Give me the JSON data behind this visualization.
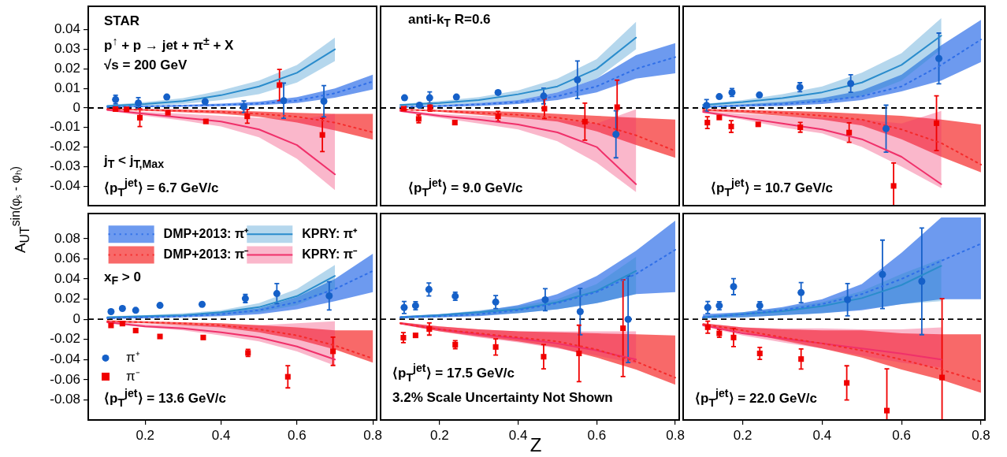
{
  "chart_data": [
    {
      "type": "scatter",
      "ylabel": "A$_{UT}$$^{sin(φₛ - φₕ)}$",
      "xlim": [
        0.05,
        0.81
      ],
      "xticks": [
        0.2,
        0.4,
        0.6,
        0.8
      ],
      "ylim": [
        -0.05,
        0.052
      ],
      "yticks": [
        -0.04,
        -0.03,
        -0.02,
        -0.01,
        0,
        0.01,
        0.02,
        0.03,
        0.04
      ],
      "tick_labels": "y",
      "annotations": [
        "STAR",
        "p$^{↑}$ + p → jet + π$^{±}$ + X",
        "√s = 200 GeV",
        "j$_{T}$ < j$_{T,Max}$",
        "⟨p$_{T}$$^{jet}$⟩ = 6.7 GeV/c"
      ],
      "ref_lines": [
        {
          "axis": "y",
          "value": 0,
          "color": "#000000",
          "line_style": "dashed"
        }
      ],
      "series": [
        {
          "type": "scatter",
          "marker": "circle",
          "color": "#1560c8",
          "x": [
            0.122,
            0.182,
            0.257,
            0.358,
            0.46,
            0.565,
            0.671
          ],
          "values": [
            0.0043,
            0.0025,
            0.0056,
            0.0032,
            0.0006,
            0.0037,
            0.0034
          ],
          "errors": [
            0.0022,
            0.0028,
            null,
            null,
            0.003,
            0.009,
            0.008
          ]
        },
        {
          "type": "scatter",
          "marker": "square",
          "color": "#f00000",
          "x": [
            0.122,
            0.151,
            0.186,
            0.26,
            0.36,
            0.469,
            0.554,
            0.667
          ],
          "values": [
            -0.0006,
            -0.0007,
            -0.005,
            -0.0025,
            -0.0069,
            -0.0043,
            0.0117,
            -0.0138
          ],
          "errors": [
            null,
            null,
            0.0045,
            null,
            null,
            0.0035,
            0.008,
            0.0085
          ]
        },
        {
          "type": "line",
          "line_style": "dotted",
          "color": "#2f6fe8",
          "x": [
            0.1,
            0.2,
            0.3,
            0.4,
            0.5,
            0.6,
            0.7,
            0.8
          ],
          "values": [
            0.0005,
            0.0008,
            0.0011,
            0.0015,
            0.0022,
            0.0038,
            0.0075,
            0.0135
          ],
          "lower": [
            0.0002,
            0.0004,
            0.0006,
            0.0009,
            0.0014,
            0.0025,
            0.0052,
            0.0095
          ],
          "upper": [
            0.0008,
            0.0012,
            0.0016,
            0.0022,
            0.0032,
            0.0055,
            0.01,
            0.017
          ]
        },
        {
          "type": "line",
          "line_style": "dotted",
          "color": "#f52a2a",
          "x": [
            0.1,
            0.2,
            0.3,
            0.4,
            0.5,
            0.6,
            0.7,
            0.8
          ],
          "values": [
            -0.0005,
            -0.001,
            -0.0015,
            -0.002,
            -0.003,
            -0.0045,
            -0.0075,
            -0.0125
          ],
          "lower": [
            -0.0008,
            -0.0015,
            -0.0022,
            -0.003,
            -0.0045,
            -0.0075,
            -0.0115,
            -0.0162
          ],
          "upper": [
            -0.0002,
            -0.0005,
            -0.0008,
            -0.0012,
            -0.0018,
            -0.0025,
            -0.003,
            -0.003
          ]
        },
        {
          "type": "line",
          "line_style": "solid",
          "color": "#2a8ccc",
          "x": [
            0.1,
            0.2,
            0.3,
            0.4,
            0.5,
            0.6,
            0.7
          ],
          "values": [
            0.001,
            0.002,
            0.0035,
            0.0065,
            0.011,
            0.018,
            0.03
          ],
          "lower": [
            0.0005,
            0.001,
            0.002,
            0.004,
            0.007,
            0.013,
            0.024
          ],
          "upper": [
            0.0015,
            0.003,
            0.005,
            0.009,
            0.014,
            0.022,
            0.036
          ]
        },
        {
          "type": "line",
          "line_style": "solid",
          "color": "#f0306a",
          "x": [
            0.1,
            0.2,
            0.3,
            0.4,
            0.5,
            0.6,
            0.7
          ],
          "values": [
            -0.001,
            -0.003,
            -0.005,
            -0.007,
            -0.011,
            -0.019,
            -0.034
          ],
          "lower": [
            -0.0015,
            -0.004,
            -0.0065,
            -0.0095,
            -0.015,
            -0.026,
            -0.042
          ],
          "upper": [
            -0.0005,
            -0.002,
            -0.003,
            -0.004,
            -0.005,
            -0.006,
            -0.003
          ]
        }
      ]
    },
    {
      "type": "scatter",
      "xlim": [
        0.05,
        0.81
      ],
      "xticks": [
        0.2,
        0.4,
        0.6,
        0.8
      ],
      "ylim": [
        -0.05,
        0.052
      ],
      "yticks": [
        -0.04,
        -0.03,
        -0.02,
        -0.01,
        0,
        0.01,
        0.02,
        0.03,
        0.04
      ],
      "tick_labels": false,
      "annotations": [
        "anti-k$_{T}$ R=0.6",
        "⟨p$_{T}$$^{jet}$⟩ = 9.0 GeV/c"
      ],
      "ref_lines": [
        {
          "axis": "y",
          "value": 0,
          "color": "#000000",
          "line_style": "dashed"
        }
      ],
      "series": [
        {
          "type": "scatter",
          "marker": "circle",
          "color": "#1560c8",
          "x": [
            0.111,
            0.149,
            0.175,
            0.243,
            0.349,
            0.465,
            0.551,
            0.649
          ],
          "values": [
            0.0052,
            0.0014,
            0.0052,
            0.0056,
            0.0079,
            0.0061,
            0.0144,
            -0.0135
          ],
          "errors": [
            null,
            null,
            0.003,
            null,
            null,
            0.004,
            0.0096,
            0.012
          ]
        },
        {
          "type": "scatter",
          "marker": "square",
          "color": "#f00000",
          "x": [
            0.109,
            0.147,
            0.176,
            0.239,
            0.349,
            0.467,
            0.57,
            0.652
          ],
          "values": [
            -0.0004,
            -0.0056,
            0.0003,
            -0.0075,
            -0.0043,
            -0.0004,
            -0.007,
            0.0004
          ],
          "errors": [
            null,
            0.002,
            0.002,
            null,
            0.0025,
            0.005,
            0.0095,
            0.0138
          ]
        },
        {
          "type": "line",
          "line_style": "dotted",
          "color": "#2f6fe8",
          "x": [
            0.1,
            0.2,
            0.3,
            0.4,
            0.5,
            0.6,
            0.7,
            0.8
          ],
          "values": [
            0.0005,
            0.001,
            0.0018,
            0.003,
            0.006,
            0.011,
            0.02,
            0.026
          ],
          "lower": [
            0.0002,
            0.0005,
            0.001,
            0.002,
            0.004,
            0.008,
            0.015,
            0.0177
          ],
          "upper": [
            0.0008,
            0.0015,
            0.0025,
            0.004,
            0.008,
            0.015,
            0.027,
            0.0332
          ]
        },
        {
          "type": "line",
          "line_style": "dotted",
          "color": "#f52a2a",
          "x": [
            0.1,
            0.2,
            0.3,
            0.4,
            0.5,
            0.6,
            0.7,
            0.8
          ],
          "values": [
            -0.0008,
            -0.0015,
            -0.0025,
            -0.0035,
            -0.005,
            -0.008,
            -0.014,
            -0.022
          ],
          "lower": [
            -0.001,
            -0.002,
            -0.0035,
            -0.005,
            -0.007,
            -0.012,
            -0.019,
            -0.0255
          ],
          "upper": [
            -0.0005,
            -0.001,
            -0.0015,
            -0.002,
            -0.003,
            -0.004,
            -0.005,
            -0.006
          ]
        },
        {
          "type": "line",
          "line_style": "solid",
          "color": "#2a8ccc",
          "x": [
            0.1,
            0.2,
            0.3,
            0.4,
            0.5,
            0.6,
            0.7
          ],
          "values": [
            0.0015,
            0.0025,
            0.004,
            0.007,
            0.011,
            0.02,
            0.036
          ],
          "lower": [
            0.001,
            0.0015,
            0.0025,
            0.004,
            0.008,
            0.015,
            0.03
          ],
          "upper": [
            0.002,
            0.0035,
            0.0055,
            0.009,
            0.015,
            0.025,
            0.044
          ]
        },
        {
          "type": "line",
          "line_style": "solid",
          "color": "#f0306a",
          "x": [
            0.1,
            0.2,
            0.3,
            0.4,
            0.5,
            0.6,
            0.7
          ],
          "values": [
            -0.0015,
            -0.004,
            -0.006,
            -0.0085,
            -0.0125,
            -0.02,
            -0.039
          ],
          "lower": [
            -0.002,
            -0.005,
            -0.008,
            -0.011,
            -0.017,
            -0.028,
            -0.043
          ],
          "upper": [
            -0.001,
            -0.003,
            -0.004,
            -0.005,
            -0.006,
            -0.008,
            -0.0007
          ]
        }
      ]
    },
    {
      "type": "scatter",
      "xlim": [
        0.05,
        0.81
      ],
      "xticks": [
        0.2,
        0.4,
        0.6,
        0.8
      ],
      "ylim": [
        -0.05,
        0.052
      ],
      "yticks": [
        -0.04,
        -0.03,
        -0.02,
        -0.01,
        0,
        0.01,
        0.02,
        0.03,
        0.04
      ],
      "tick_labels": false,
      "annotations": [
        "⟨p$_{T}$$^{jet}$⟩ = 10.7 GeV/c"
      ],
      "ref_lines": [
        {
          "axis": "y",
          "value": 0,
          "color": "#000000",
          "line_style": "dashed"
        }
      ],
      "series": [
        {
          "type": "scatter",
          "marker": "circle",
          "color": "#1560c8",
          "x": [
            0.109,
            0.141,
            0.173,
            0.242,
            0.344,
            0.472,
            0.561,
            0.694
          ],
          "values": [
            0.0013,
            0.0058,
            0.0079,
            0.0066,
            0.0106,
            0.0125,
            -0.0106,
            0.0253
          ],
          "errors": [
            0.003,
            null,
            0.002,
            null,
            0.0023,
            0.0045,
            0.012,
            0.013
          ]
        },
        {
          "type": "scatter",
          "marker": "square",
          "color": "#f00000",
          "x": [
            0.111,
            0.141,
            0.171,
            0.239,
            0.345,
            0.468,
            0.58,
            0.688
          ],
          "values": [
            -0.0075,
            -0.0049,
            -0.0095,
            -0.0084,
            -0.0099,
            -0.0126,
            -0.0399,
            -0.0078
          ],
          "errors": [
            0.003,
            null,
            0.003,
            null,
            0.0025,
            0.005,
            [
              -0.05,
              -0.0282
            ],
            0.014
          ]
        },
        {
          "type": "line",
          "line_style": "dotted",
          "color": "#2f6fe8",
          "x": [
            0.1,
            0.2,
            0.3,
            0.4,
            0.5,
            0.6,
            0.7,
            0.8
          ],
          "values": [
            0.0005,
            0.0012,
            0.002,
            0.0035,
            0.006,
            0.011,
            0.022,
            0.035
          ],
          "lower": [
            0.0002,
            0.0006,
            0.001,
            0.002,
            0.004,
            0.0085,
            0.014,
            0.0235
          ],
          "upper": [
            0.0008,
            0.0018,
            0.003,
            0.005,
            0.009,
            0.017,
            0.032,
            0.045
          ]
        },
        {
          "type": "line",
          "line_style": "dotted",
          "color": "#f52a2a",
          "x": [
            0.1,
            0.2,
            0.3,
            0.4,
            0.5,
            0.6,
            0.7,
            0.8
          ],
          "values": [
            -0.001,
            -0.0015,
            -0.0025,
            -0.004,
            -0.006,
            -0.011,
            -0.018,
            -0.029
          ],
          "lower": [
            -0.0015,
            -0.0025,
            -0.004,
            -0.006,
            -0.009,
            -0.016,
            -0.025,
            -0.033
          ],
          "upper": [
            -0.0005,
            -0.001,
            -0.0015,
            -0.002,
            -0.003,
            -0.004,
            -0.006,
            -0.0085
          ]
        },
        {
          "type": "line",
          "line_style": "solid",
          "color": "#2a8ccc",
          "x": [
            0.1,
            0.2,
            0.3,
            0.4,
            0.5,
            0.6,
            0.7
          ],
          "values": [
            0.0015,
            0.003,
            0.005,
            0.008,
            0.013,
            0.022,
            0.037
          ],
          "lower": [
            0.0005,
            0.001,
            0.002,
            0.003,
            0.006,
            0.014,
            0.03
          ],
          "upper": [
            0.002,
            0.004,
            0.007,
            0.011,
            0.018,
            0.028,
            0.046
          ]
        },
        {
          "type": "line",
          "line_style": "solid",
          "color": "#f0306a",
          "x": [
            0.1,
            0.2,
            0.3,
            0.4,
            0.5,
            0.6,
            0.7
          ],
          "values": [
            -0.002,
            -0.005,
            -0.008,
            -0.011,
            -0.016,
            -0.025,
            -0.039
          ],
          "lower": [
            -0.0025,
            -0.006,
            -0.01,
            -0.013,
            -0.02,
            -0.03,
            -0.041
          ],
          "upper": [
            -0.0015,
            -0.003,
            -0.004,
            -0.005,
            -0.006,
            -0.008,
            -0.0015
          ]
        }
      ]
    },
    {
      "type": "scatter",
      "xlim": [
        0.05,
        0.81
      ],
      "xticks": [
        0.2,
        0.4,
        0.6,
        0.8
      ],
      "ylim": [
        -0.1,
        0.105
      ],
      "yticks": [
        -0.08,
        -0.06,
        -0.04,
        -0.02,
        0,
        0.02,
        0.04,
        0.06,
        0.08
      ],
      "legend": "top",
      "annotations": [
        "x$_{F}$ > 0",
        "⟨p$_{T}$$^{jet}$⟩ = 13.6 GeV/c"
      ],
      "ref_lines": [
        {
          "axis": "y",
          "value": 0,
          "color": "#000000",
          "line_style": "dashed"
        }
      ],
      "series": [
        {
          "name": "π⁺",
          "type": "scatter",
          "marker": "circle",
          "color": "#1560c8",
          "x": [
            0.11,
            0.14,
            0.175,
            0.239,
            0.35,
            0.464,
            0.547,
            0.685
          ],
          "values": [
            0.0076,
            0.0107,
            0.0089,
            0.0138,
            0.0148,
            0.0206,
            0.0255,
            0.0232
          ],
          "errors": [
            null,
            null,
            null,
            null,
            null,
            0.004,
            0.01,
            0.014
          ]
        },
        {
          "name": "π⁻",
          "type": "scatter",
          "marker": "square",
          "color": "#f00000",
          "x": [
            0.11,
            0.14,
            0.175,
            0.239,
            0.353,
            0.471,
            0.576,
            0.695
          ],
          "values": [
            -0.0061,
            -0.0043,
            -0.0112,
            -0.0171,
            -0.0181,
            -0.0334,
            -0.0571,
            -0.0318
          ],
          "errors": [
            null,
            null,
            null,
            null,
            null,
            0.0035,
            0.011,
            0.014
          ]
        },
        {
          "name": "DMP+2013: π⁺",
          "type": "line",
          "line_style": "dotted",
          "color": "#2f6fe8",
          "x": [
            0.1,
            0.2,
            0.3,
            0.4,
            0.5,
            0.6,
            0.7,
            0.8
          ],
          "values": [
            0.001,
            0.002,
            0.003,
            0.005,
            0.009,
            0.017,
            0.03,
            0.048
          ],
          "lower": [
            0.0005,
            0.001,
            0.002,
            0.003,
            0.005,
            0.01,
            0.018,
            0.027
          ],
          "upper": [
            0.0015,
            0.003,
            0.004,
            0.007,
            0.011,
            0.022,
            0.04,
            0.065
          ]
        },
        {
          "name": "DMP+2013: π⁻",
          "type": "line",
          "line_style": "dotted",
          "color": "#f52a2a",
          "x": [
            0.1,
            0.2,
            0.3,
            0.4,
            0.5,
            0.6,
            0.7,
            0.8
          ],
          "values": [
            -0.002,
            -0.003,
            -0.004,
            -0.006,
            -0.01,
            -0.016,
            -0.026,
            -0.039
          ],
          "lower": [
            -0.003,
            -0.004,
            -0.006,
            -0.008,
            -0.013,
            -0.02,
            -0.03,
            -0.043
          ],
          "upper": [
            -0.001,
            -0.002,
            -0.003,
            -0.004,
            -0.006,
            -0.008,
            -0.011,
            -0.011
          ]
        },
        {
          "name": "KPRY: π⁺",
          "type": "line",
          "line_style": "solid",
          "color": "#2a8ccc",
          "x": [
            0.1,
            0.2,
            0.3,
            0.4,
            0.5,
            0.6,
            0.7
          ],
          "values": [
            0.002,
            0.003,
            0.004,
            0.007,
            0.012,
            0.023,
            0.043
          ],
          "lower": [
            0.001,
            0.002,
            0.003,
            0.004,
            0.007,
            0.014,
            0.03
          ],
          "upper": [
            0.003,
            0.004,
            0.006,
            0.009,
            0.016,
            0.03,
            0.054
          ]
        },
        {
          "name": "KPRY: π⁻",
          "type": "line",
          "line_style": "solid",
          "color": "#f0306a",
          "x": [
            0.1,
            0.2,
            0.3,
            0.4,
            0.5,
            0.6,
            0.7
          ],
          "values": [
            -0.003,
            -0.007,
            -0.009,
            -0.013,
            -0.018,
            -0.027,
            -0.04
          ],
          "lower": [
            -0.004,
            -0.008,
            -0.011,
            -0.016,
            -0.022,
            -0.032,
            -0.046
          ],
          "upper": [
            -0.002,
            -0.005,
            -0.006,
            -0.006,
            -0.006,
            -0.004,
            -0.002
          ]
        }
      ]
    },
    {
      "type": "scatter",
      "xlabel": "Z",
      "xlim": [
        0.05,
        0.81
      ],
      "xticks": [
        0.2,
        0.4,
        0.6,
        0.8
      ],
      "ylim": [
        -0.1,
        0.105
      ],
      "yticks": [
        -0.08,
        -0.06,
        -0.04,
        -0.02,
        0,
        0.02,
        0.04,
        0.06,
        0.08
      ],
      "tick_labels": "x",
      "annotations": [
        "⟨p$_{T}$$^{jet}$⟩ = 17.5 GeV/c",
        "3.2% Scale Uncertainty Not Shown"
      ],
      "ref_lines": [
        {
          "axis": "y",
          "value": 0,
          "color": "#000000",
          "line_style": "dashed"
        }
      ],
      "series": [
        {
          "type": "scatter",
          "marker": "circle",
          "color": "#1560c8",
          "x": [
            0.11,
            0.139,
            0.173,
            0.24,
            0.343,
            0.469,
            0.558,
            0.68
          ],
          "values": [
            0.0117,
            0.0135,
            0.0296,
            0.0229,
            0.0171,
            0.0194,
            0.0076,
            0
          ],
          "errors": [
            0.006,
            0.004,
            0.0065,
            0.004,
            0.0065,
            0.011,
            0.023,
            0.043
          ]
        },
        {
          "type": "scatter",
          "marker": "square",
          "color": "#f00000",
          "x": [
            0.108,
            0.139,
            0.174,
            0.24,
            0.343,
            0.465,
            0.555,
            0.667
          ],
          "values": [
            -0.0183,
            -0.016,
            -0.0097,
            -0.0252,
            -0.0275,
            -0.0372,
            -0.0339,
            -0.0089
          ],
          "errors": [
            0.005,
            null,
            0.006,
            0.004,
            0.008,
            0.012,
            0.028,
            0.048
          ]
        },
        {
          "type": "line",
          "line_style": "dotted",
          "color": "#2f6fe8",
          "x": [
            0.1,
            0.2,
            0.3,
            0.4,
            0.5,
            0.6,
            0.7,
            0.8
          ],
          "values": [
            0.002,
            0.003,
            0.005,
            0.009,
            0.016,
            0.027,
            0.045,
            0.069
          ],
          "lower": [
            0.001,
            0.002,
            0.003,
            0.006,
            0.01,
            0.016,
            0.025,
            0.027
          ],
          "upper": [
            0.003,
            0.005,
            0.008,
            0.014,
            0.025,
            0.043,
            0.068,
            0.098
          ]
        },
        {
          "type": "line",
          "line_style": "dotted",
          "color": "#f52a2a",
          "x": [
            0.1,
            0.2,
            0.3,
            0.4,
            0.5,
            0.6,
            0.7,
            0.8
          ],
          "values": [
            -0.004,
            -0.01,
            -0.014,
            -0.018,
            -0.022,
            -0.03,
            -0.042,
            -0.058
          ],
          "lower": [
            -0.005,
            -0.012,
            -0.017,
            -0.022,
            -0.028,
            -0.038,
            -0.05,
            -0.065
          ],
          "upper": [
            -0.003,
            -0.007,
            -0.01,
            -0.012,
            -0.013,
            -0.014,
            -0.015,
            -0.016
          ]
        },
        {
          "type": "line",
          "line_style": "solid",
          "color": "#2a8ccc",
          "x": [
            0.1,
            0.2,
            0.3,
            0.4,
            0.5,
            0.6,
            0.7
          ],
          "values": [
            0.002,
            0.004,
            0.007,
            0.01,
            0.017,
            0.028,
            0.048
          ],
          "lower": [
            0.001,
            0.002,
            0.004,
            0.006,
            0.01,
            0.016,
            0.025
          ],
          "upper": [
            0.003,
            0.005,
            0.009,
            0.013,
            0.02,
            0.035,
            0.062
          ]
        },
        {
          "type": "line",
          "line_style": "solid",
          "color": "#f0306a",
          "x": [
            0.1,
            0.2,
            0.3,
            0.4,
            0.5,
            0.6,
            0.7
          ],
          "values": [
            -0.004,
            -0.01,
            -0.015,
            -0.019,
            -0.024,
            -0.031,
            -0.04
          ],
          "lower": [
            -0.005,
            -0.012,
            -0.018,
            -0.023,
            -0.029,
            -0.036,
            -0.044
          ],
          "upper": [
            -0.003,
            -0.007,
            -0.01,
            -0.012,
            -0.012,
            -0.012,
            -0.012
          ]
        }
      ]
    },
    {
      "type": "scatter",
      "xlim": [
        0.05,
        0.81
      ],
      "xticks": [
        0.2,
        0.4,
        0.6,
        0.8
      ],
      "ylim": [
        -0.1,
        0.105
      ],
      "yticks": [
        -0.08,
        -0.06,
        -0.04,
        -0.02,
        0,
        0.02,
        0.04,
        0.06,
        0.08
      ],
      "tick_labels": "x",
      "annotations": [
        "⟨p$_{T}$$^{jet}$⟩ = 22.0 GeV/c"
      ],
      "ref_lines": [
        {
          "axis": "y",
          "value": 0,
          "color": "#000000",
          "line_style": "dashed"
        }
      ],
      "series": [
        {
          "type": "scatter",
          "marker": "circle",
          "color": "#1560c8",
          "x": [
            0.112,
            0.141,
            0.177,
            0.243,
            0.347,
            0.464,
            0.552,
            0.651
          ],
          "values": [
            0.0117,
            0.0135,
            0.0324,
            0.0135,
            0.0265,
            0.0194,
            0.0446,
            0.0377
          ],
          "errors": [
            0.006,
            0.004,
            0.008,
            0.004,
            0.01,
            0.016,
            0.034,
            0.053
          ]
        },
        {
          "type": "scatter",
          "marker": "square",
          "color": "#f00000",
          "x": [
            0.112,
            0.141,
            0.177,
            0.243,
            0.347,
            0.462,
            0.563,
            0.702
          ],
          "values": [
            -0.0079,
            -0.014,
            -0.0181,
            -0.0339,
            -0.0395,
            -0.0632,
            -0.0907,
            -0.0578
          ],
          "errors": [
            0.006,
            0.004,
            0.009,
            0.006,
            0.01,
            0.017,
            [
              -0.1,
              -0.0492
            ],
            [
              -0.1,
              0.0204
            ]
          ]
        },
        {
          "type": "line",
          "line_style": "dotted",
          "color": "#2f6fe8",
          "x": [
            0.1,
            0.2,
            0.3,
            0.4,
            0.5,
            0.6,
            0.7,
            0.8
          ],
          "values": [
            0.002,
            0.005,
            0.009,
            0.015,
            0.025,
            0.04,
            0.058,
            0.075
          ],
          "lower": [
            0.001,
            0.002,
            0.004,
            0.006,
            0.009,
            0.015,
            0.02,
            0.02
          ],
          "upper": [
            0.005,
            0.007,
            0.012,
            0.02,
            0.035,
            0.066,
            0.101,
            0.101
          ]
        },
        {
          "type": "line",
          "line_style": "dotted",
          "color": "#f52a2a",
          "x": [
            0.1,
            0.2,
            0.3,
            0.4,
            0.5,
            0.6,
            0.7,
            0.8
          ],
          "values": [
            -0.005,
            -0.011,
            -0.018,
            -0.024,
            -0.031,
            -0.04,
            -0.05,
            -0.062
          ],
          "lower": [
            -0.006,
            -0.013,
            -0.021,
            -0.029,
            -0.038,
            -0.05,
            -0.06,
            -0.073
          ],
          "upper": [
            -0.004,
            -0.008,
            -0.01,
            -0.011,
            -0.011,
            -0.014,
            -0.015,
            -0.015
          ]
        },
        {
          "type": "line",
          "line_style": "solid",
          "color": "#2a8ccc",
          "x": [
            0.1,
            0.2,
            0.3,
            0.4,
            0.5,
            0.6,
            0.7
          ],
          "values": [
            0.002,
            0.005,
            0.008,
            0.013,
            0.021,
            0.034,
            0.053
          ],
          "lower": [
            0.001,
            0.002,
            0.004,
            0.006,
            0.01,
            0.015,
            0.018
          ],
          "upper": [
            0.003,
            0.007,
            0.011,
            0.017,
            0.028,
            0.045,
            0.06
          ]
        },
        {
          "type": "line",
          "line_style": "solid",
          "color": "#f0306a",
          "x": [
            0.1,
            0.2,
            0.3,
            0.4,
            0.5,
            0.6,
            0.7
          ],
          "values": [
            -0.006,
            -0.014,
            -0.019,
            -0.024,
            -0.029,
            -0.034,
            -0.04
          ],
          "lower": [
            -0.007,
            -0.016,
            -0.023,
            -0.029,
            -0.036,
            -0.043,
            -0.048
          ],
          "upper": [
            -0.004,
            -0.008,
            -0.009,
            -0.009,
            -0.01,
            -0.01,
            -0.008
          ]
        }
      ]
    }
  ]
}
